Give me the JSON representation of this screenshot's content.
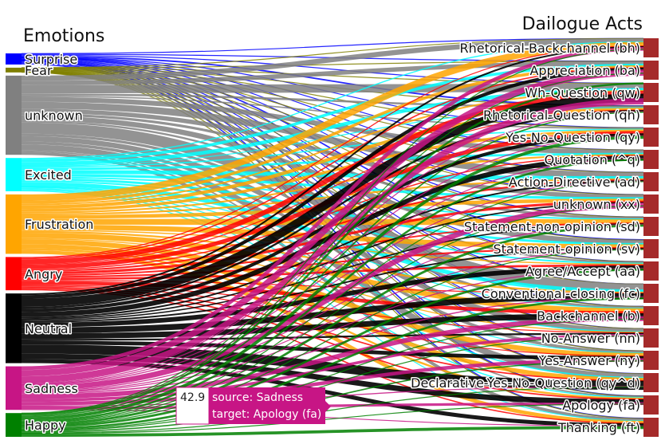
{
  "chart_data": {
    "type": "sankey",
    "source_title": "Emotions",
    "target_title": "Dailogue Acts",
    "sources": [
      {
        "name": "Surprise",
        "color": "#0000ff"
      },
      {
        "name": "Fear",
        "color": "#808000"
      },
      {
        "name": "unknown",
        "color": "#808080"
      },
      {
        "name": "Excited",
        "color": "#00ffff"
      },
      {
        "name": "Frustration",
        "color": "#ffa500"
      },
      {
        "name": "Angry",
        "color": "#ff0000"
      },
      {
        "name": "Neutral",
        "color": "#000000"
      },
      {
        "name": "Sadness",
        "color": "#c71585"
      },
      {
        "name": "Happy",
        "color": "#008000"
      }
    ],
    "source_sizes": [
      14,
      6,
      100,
      42,
      75,
      42,
      88,
      55,
      30
    ],
    "targets": [
      "Rhetorical-Backchannel (bh)",
      "Appreciation (ba)",
      "Wh-Question (qw)",
      "Rhetorical-Question (qh)",
      "Yes-No-Question (qy)",
      "Quotation (^q)",
      "Action-Directive (ad)",
      "unknown (xx)",
      "Statement-non-opinion (sd)",
      "Statement-opinion (sv)",
      "Agree/Accept (aa)",
      "Conventional-closing (fc)",
      "Backchannel (b)",
      "No-Answer (nn)",
      "Yes-Answer (ny)",
      "Declarative-Yes-No-Question (qy^d)",
      "Apology (fa)",
      "Thanking (ft)"
    ],
    "target_color": "#a52a2a",
    "tooltip": {
      "value": "42.9",
      "source_line": "source: Sadness",
      "target_line": "target: Apology (fa)"
    }
  }
}
